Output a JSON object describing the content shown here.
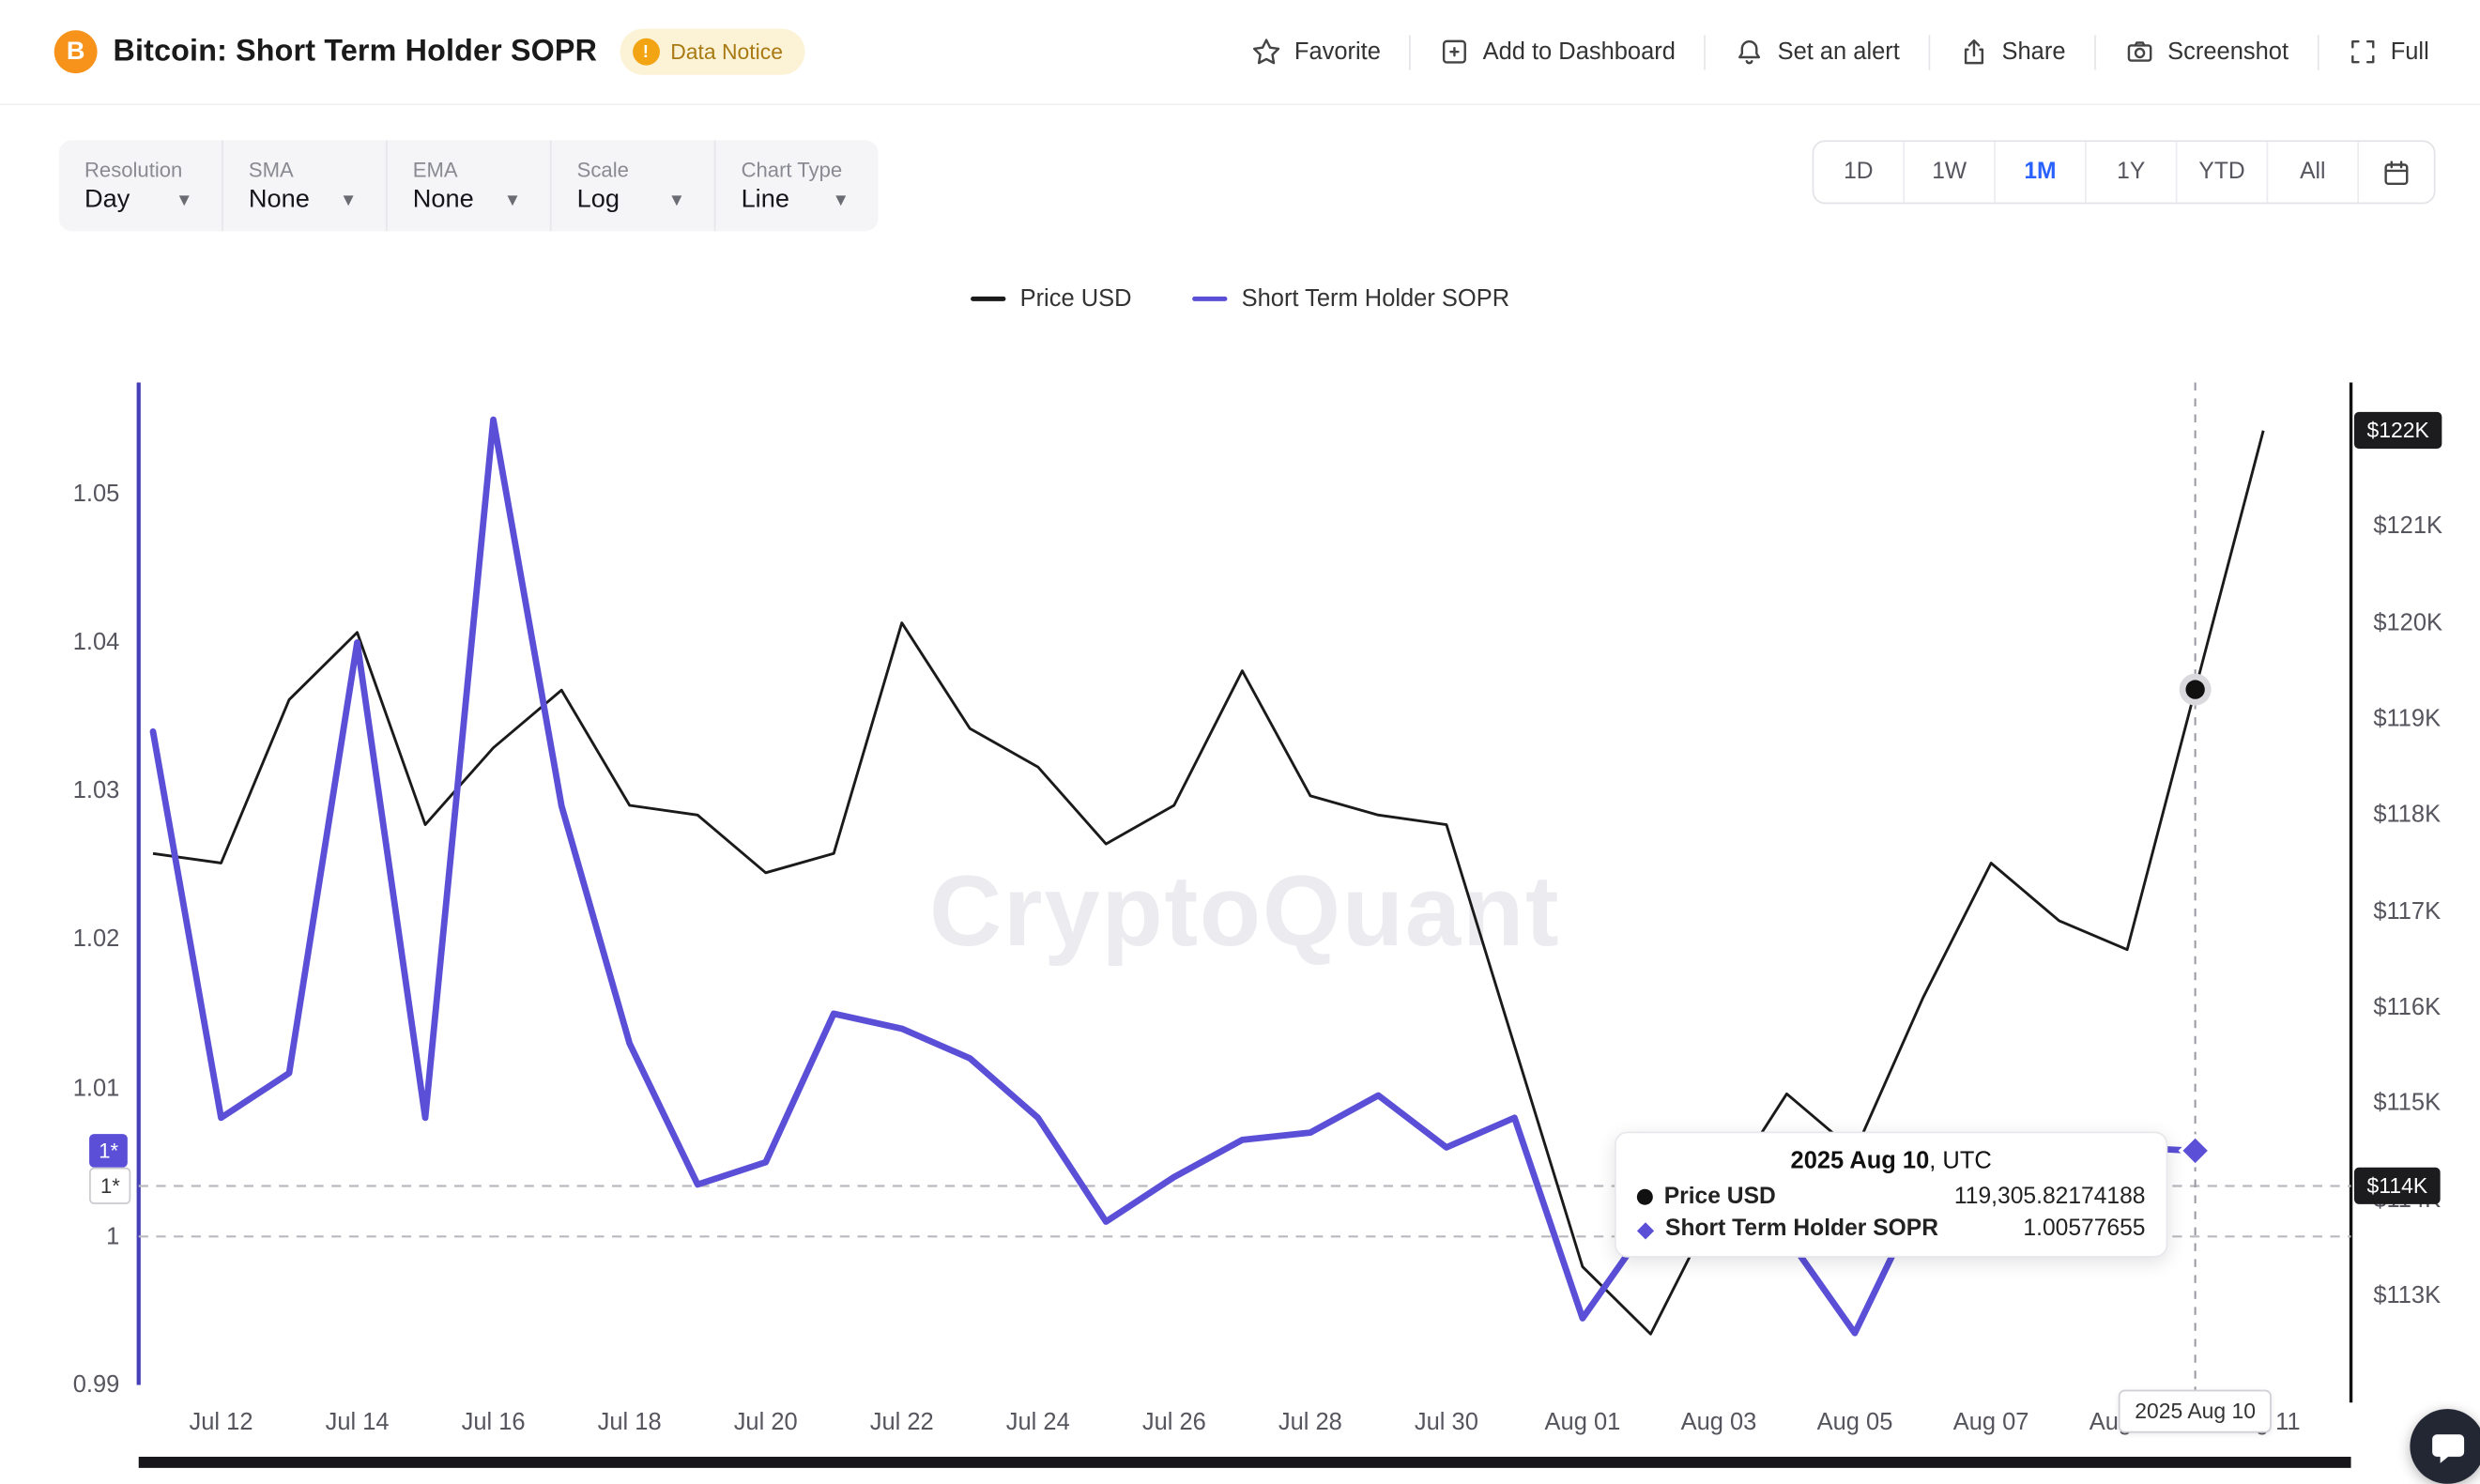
{
  "header": {
    "title": "Bitcoin: Short Term Holder SOPR",
    "data_notice": "Data Notice",
    "actions": [
      {
        "label": "Favorite",
        "icon": "star-icon"
      },
      {
        "label": "Add to Dashboard",
        "icon": "dashboard-add-icon"
      },
      {
        "label": "Set an alert",
        "icon": "bell-icon"
      },
      {
        "label": "Share",
        "icon": "share-icon"
      },
      {
        "label": "Screenshot",
        "icon": "camera-icon"
      },
      {
        "label": "Full",
        "icon": "fullscreen-icon"
      }
    ]
  },
  "controls": [
    {
      "label": "Resolution",
      "value": "Day"
    },
    {
      "label": "SMA",
      "value": "None"
    },
    {
      "label": "EMA",
      "value": "None"
    },
    {
      "label": "Scale",
      "value": "Log"
    },
    {
      "label": "Chart Type",
      "value": "Line"
    }
  ],
  "range_buttons": {
    "options": [
      "1D",
      "1W",
      "1M",
      "1Y",
      "YTD",
      "All"
    ],
    "selected": "1M"
  },
  "legend": [
    {
      "label": "Price USD",
      "color": "#1a1a1a"
    },
    {
      "label": "Short Term Holder SOPR",
      "color": "#5a4fd6"
    }
  ],
  "watermark": "CryptoQuant",
  "tooltip": {
    "title_date": "2025 Aug 10",
    "title_suffix": ", UTC",
    "rows": [
      {
        "label": "Price USD",
        "value": "119,305.82174188",
        "marker": "circle",
        "color": "#111111"
      },
      {
        "label": "Short Term Holder SOPR",
        "value": "1.00577655",
        "marker": "diamond",
        "color": "#5a4fd6"
      }
    ]
  },
  "axis_badges": {
    "left_active": "1*",
    "left_crosshair": "1*",
    "right_latest": "$122K",
    "right_crosshair": "$114K",
    "x_crosshair": "2025 Aug 10"
  },
  "chart_data": {
    "type": "line",
    "title": "Bitcoin: Short Term Holder SOPR",
    "x_dates": [
      "Jul 11",
      "Jul 12",
      "Jul 13",
      "Jul 14",
      "Jul 15",
      "Jul 16",
      "Jul 17",
      "Jul 18",
      "Jul 19",
      "Jul 20",
      "Jul 21",
      "Jul 22",
      "Jul 23",
      "Jul 24",
      "Jul 25",
      "Jul 26",
      "Jul 27",
      "Jul 28",
      "Jul 29",
      "Jul 30",
      "Jul 31",
      "Aug 01",
      "Aug 02",
      "Aug 03",
      "Aug 04",
      "Aug 05",
      "Aug 06",
      "Aug 07",
      "Aug 08",
      "Aug 09",
      "Aug 10",
      "Aug 11"
    ],
    "series": [
      {
        "name": "Price USD",
        "axis": "right",
        "color": "#1a1a1a",
        "values": [
          117600,
          117500,
          119200,
          119900,
          117900,
          118700,
          119300,
          118100,
          118000,
          117400,
          117600,
          120000,
          118900,
          118500,
          117700,
          118100,
          119500,
          118200,
          118000,
          117900,
          115600,
          113300,
          112600,
          114000,
          115100,
          114500,
          116100,
          117500,
          116900,
          116600,
          119305.82174188,
          122000
        ]
      },
      {
        "name": "Short Term Holder SOPR",
        "axis": "left",
        "color": "#5a4fd6",
        "values": [
          1.034,
          1.008,
          1.011,
          1.04,
          1.008,
          1.055,
          1.029,
          1.013,
          1.0035,
          1.005,
          1.015,
          1.014,
          1.012,
          1.008,
          1.001,
          1.004,
          1.0065,
          1.007,
          1.0095,
          1.006,
          1.008,
          0.9945,
          1.001,
          1.002,
          1.0,
          0.9935,
          1.003,
          1.0068,
          1.0068,
          1.006,
          1.00577655
        ]
      }
    ],
    "left_axis": {
      "label": "Short Term Holder SOPR",
      "min": 0.99,
      "max": 1.0575,
      "baseline": 1.0,
      "scale": "log",
      "ticks": [
        {
          "label": "1.05",
          "v": 1.05
        },
        {
          "label": "1.04",
          "v": 1.04
        },
        {
          "label": "1.03",
          "v": 1.03
        },
        {
          "label": "1.02",
          "v": 1.02
        },
        {
          "label": "1.01",
          "v": 1.01
        },
        {
          "label": "1",
          "v": 1.0
        },
        {
          "label": "0.99",
          "v": 0.99
        }
      ]
    },
    "right_axis": {
      "label": "Price USD",
      "min": 112070,
      "max": 122500,
      "scale": "log",
      "ticks": [
        {
          "label": "$122K",
          "v": 122000
        },
        {
          "label": "$121K",
          "v": 121000
        },
        {
          "label": "$120K",
          "v": 120000
        },
        {
          "label": "$119K",
          "v": 119000
        },
        {
          "label": "$118K",
          "v": 118000
        },
        {
          "label": "$117K",
          "v": 117000
        },
        {
          "label": "$116K",
          "v": 116000
        },
        {
          "label": "$115K",
          "v": 115000
        },
        {
          "label": "$114K",
          "v": 114000
        },
        {
          "label": "$113K",
          "v": 113000
        }
      ]
    },
    "x_ticks": [
      {
        "label": "Jul 12",
        "i": 1
      },
      {
        "label": "Jul 14",
        "i": 3
      },
      {
        "label": "Jul 16",
        "i": 5
      },
      {
        "label": "Jul 18",
        "i": 7
      },
      {
        "label": "Jul 20",
        "i": 9
      },
      {
        "label": "Jul 22",
        "i": 11
      },
      {
        "label": "Jul 24",
        "i": 13
      },
      {
        "label": "Jul 26",
        "i": 15
      },
      {
        "label": "Jul 28",
        "i": 17
      },
      {
        "label": "Jul 30",
        "i": 19
      },
      {
        "label": "Aug 01",
        "i": 21
      },
      {
        "label": "Aug 03",
        "i": 23
      },
      {
        "label": "Aug 05",
        "i": 25
      },
      {
        "label": "Aug 07",
        "i": 27
      },
      {
        "label": "Aug 09",
        "i": 29
      },
      {
        "label": "Aug 11",
        "i": 31
      }
    ],
    "crosshair": {
      "index": 30,
      "h_value_left": 1.0034
    },
    "marker_values": {
      "price": 119305.82174188,
      "sopr": 1.00577655
    },
    "legend_position": "top-center",
    "grid": false
  }
}
